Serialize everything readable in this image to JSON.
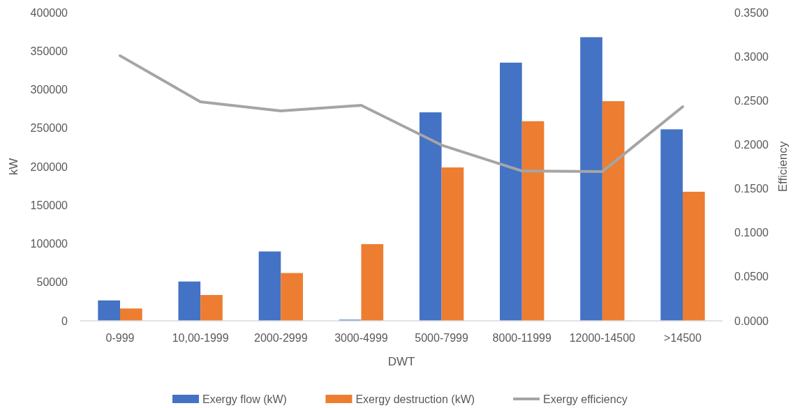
{
  "chart_data": {
    "type": "bar",
    "xlabel": "DWT",
    "ylabel": "kW",
    "y2label": "Efficiency",
    "categories": [
      "0-999",
      "10,00-1999",
      "2000-2999",
      "3000-4999",
      "5000-7999",
      "8000-11999",
      "12000-14500",
      ">14500"
    ],
    "series": [
      {
        "name": "Exergy flow  (kW)",
        "color": "#4472c4",
        "values": [
          26500,
          51000,
          90000,
          1500,
          270500,
          335000,
          368000,
          248500
        ]
      },
      {
        "name": "Exergy destruction (kW)",
        "color": "#ed7d31",
        "values": [
          16000,
          33500,
          62000,
          99500,
          199000,
          259000,
          285000,
          167500
        ]
      },
      {
        "name": "Exergy efficiency",
        "type": "line",
        "axis": "y2",
        "color": "#a5a5a5",
        "values": [
          0.301,
          0.2486,
          0.2383,
          0.2447,
          0.1995,
          0.1702,
          0.1694,
          0.2431
        ]
      }
    ],
    "ylim": [
      0,
      400000
    ],
    "yticks": [
      0,
      50000,
      100000,
      150000,
      200000,
      250000,
      300000,
      350000,
      400000
    ],
    "y2lim": [
      0,
      0.35
    ],
    "y2ticks": [
      {
        "value": 0,
        "label": "0.0000"
      },
      {
        "value": 0.05,
        "label": "0.0500"
      },
      {
        "value": 0.1,
        "label": "0.1000"
      },
      {
        "value": 0.15,
        "label": "0.1500"
      },
      {
        "value": 0.2,
        "label": "0.2000"
      },
      {
        "value": 0.25,
        "label": "0.2500"
      },
      {
        "value": 0.3,
        "label": "0.3000"
      },
      {
        "value": 0.35,
        "label": "0.3500"
      }
    ],
    "legend": "bottom",
    "grid": false,
    "marker": "none"
  }
}
